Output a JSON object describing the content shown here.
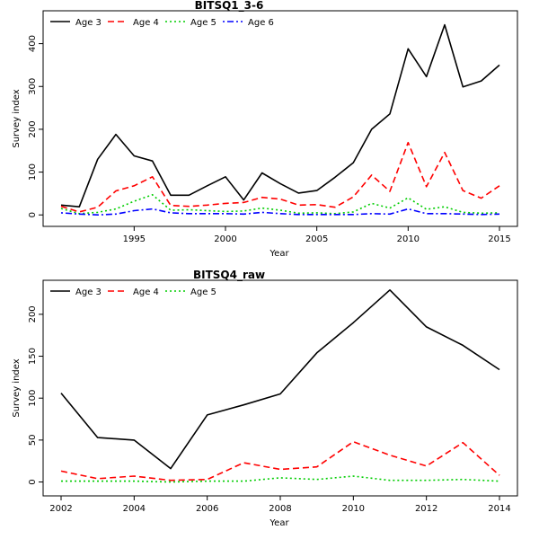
{
  "chart_data": [
    {
      "type": "line",
      "title": "BITSQ1_3-6",
      "xlabel": "Year",
      "ylabel": "Survey index",
      "xlim": [
        1991,
        2015
      ],
      "ylim": [
        -10,
        460
      ],
      "xticks": [
        1995,
        2000,
        2005,
        2010,
        2015
      ],
      "yticks": [
        0,
        100,
        200,
        300,
        400
      ],
      "legend_position": "top-left",
      "x": [
        1991,
        1992,
        1993,
        1994,
        1995,
        1996,
        1997,
        1998,
        1999,
        2000,
        2001,
        2002,
        2003,
        2004,
        2005,
        2006,
        2007,
        2008,
        2009,
        2010,
        2011,
        2012,
        2013,
        2014,
        2015
      ],
      "series": [
        {
          "name": "Age 3",
          "color": "#000000",
          "dash": "solid",
          "values": [
            23,
            19,
            130,
            188,
            138,
            126,
            46,
            46,
            68,
            89,
            35,
            98,
            73,
            51,
            57,
            88,
            122,
            200,
            236,
            388,
            323,
            444,
            299,
            313,
            350
          ]
        },
        {
          "name": "Age 4",
          "color": "#ff0000",
          "dash": "dashed",
          "values": [
            20,
            7,
            18,
            56,
            68,
            89,
            22,
            20,
            23,
            27,
            29,
            41,
            37,
            23,
            24,
            18,
            42,
            93,
            55,
            169,
            66,
            146,
            57,
            39,
            68
          ]
        },
        {
          "name": "Age 5",
          "color": "#00cd00",
          "dash": "dotted",
          "values": [
            15,
            3,
            6,
            14,
            32,
            47,
            11,
            12,
            10,
            8,
            9,
            16,
            11,
            4,
            5,
            3,
            7,
            27,
            16,
            40,
            13,
            19,
            6,
            4,
            5
          ]
        },
        {
          "name": "Age 6",
          "color": "#0000ff",
          "dash": "dotdash",
          "values": [
            5,
            2,
            0,
            2,
            10,
            14,
            5,
            3,
            3,
            3,
            2,
            6,
            3,
            1,
            1,
            1,
            1,
            3,
            2,
            14,
            3,
            3,
            2,
            1,
            2
          ]
        }
      ]
    },
    {
      "type": "line",
      "title": "BITSQ4_raw",
      "xlabel": "Year",
      "ylabel": "Survey index",
      "xlim": [
        2002,
        2014
      ],
      "ylim": [
        -8,
        232
      ],
      "xticks": [
        2002,
        2004,
        2006,
        2008,
        2010,
        2012,
        2014
      ],
      "yticks": [
        0,
        50,
        100,
        150,
        200
      ],
      "legend_position": "top-left",
      "x": [
        2002,
        2003,
        2004,
        2005,
        2006,
        2007,
        2008,
        2009,
        2010,
        2011,
        2012,
        2013,
        2014
      ],
      "series": [
        {
          "name": "Age 3",
          "color": "#000000",
          "dash": "solid",
          "values": [
            106,
            53,
            50,
            16,
            80,
            92,
            105,
            154,
            190,
            229,
            185,
            163,
            134
          ]
        },
        {
          "name": "Age 4",
          "color": "#ff0000",
          "dash": "dashed",
          "values": [
            13,
            4,
            7,
            2,
            3,
            23,
            15,
            18,
            48,
            32,
            19,
            47,
            8
          ]
        },
        {
          "name": "Age 5",
          "color": "#00cd00",
          "dash": "dotted",
          "values": [
            1,
            1,
            1,
            0,
            1,
            1,
            5,
            3,
            7,
            2,
            2,
            3,
            1
          ]
        }
      ]
    }
  ]
}
